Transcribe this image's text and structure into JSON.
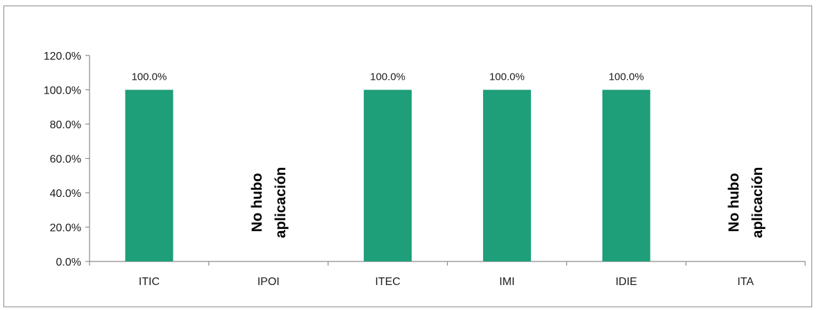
{
  "chart_data": {
    "type": "bar",
    "title": "",
    "xlabel": "",
    "ylabel": "",
    "categories": [
      "ITIC",
      "IPOI",
      "ITEC",
      "IMI",
      "IDIE",
      "ITA"
    ],
    "values": [
      100.0,
      null,
      100.0,
      100.0,
      100.0,
      null
    ],
    "data_labels": [
      "100.0%",
      "",
      "100.0%",
      "100.0%",
      "100.0%",
      ""
    ],
    "annotations": [
      {
        "category": "IPOI",
        "lines": [
          "No hubo",
          "aplicación"
        ]
      },
      {
        "category": "ITA",
        "lines": [
          "No hubo",
          "aplicación"
        ]
      }
    ],
    "ylim": [
      0,
      120
    ],
    "yticks": [
      0,
      20,
      40,
      60,
      80,
      100,
      120
    ],
    "ytick_labels": [
      "0.0%",
      "20.0%",
      "40.0%",
      "60.0%",
      "80.0%",
      "100.0%",
      "120.0%"
    ],
    "grid": false,
    "legend": "none",
    "bar_color": "#1f9e7a"
  }
}
